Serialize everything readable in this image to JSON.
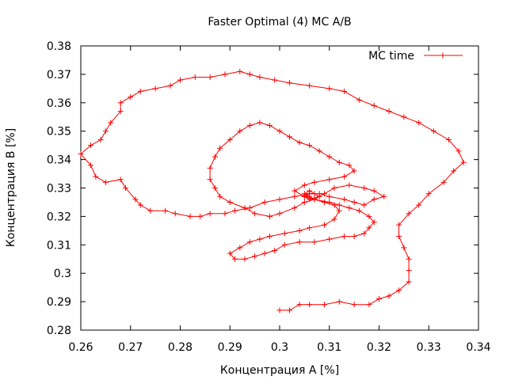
{
  "chart_data": {
    "type": "line",
    "title": "Faster Optimal (4) MC A/B",
    "xlabel": "Концентрация А [%]",
    "ylabel": "Концентрация В [%]",
    "xlim": [
      0.26,
      0.34
    ],
    "ylim": [
      0.28,
      0.38
    ],
    "xticks": [
      "0.26",
      "0.27",
      "0.28",
      "0.29",
      "0.3",
      "0.31",
      "0.32",
      "0.33",
      "0.34"
    ],
    "yticks": [
      "0.28",
      "0.29",
      "0.3",
      "0.31",
      "0.32",
      "0.33",
      "0.34",
      "0.35",
      "0.36",
      "0.37",
      "0.38"
    ],
    "legend_position": "top-right",
    "grid": false,
    "series": [
      {
        "name": "MC time",
        "color": "#ff0000",
        "marker": "plus",
        "points": [
          [
            0.3,
            0.287
          ],
          [
            0.302,
            0.287
          ],
          [
            0.304,
            0.289
          ],
          [
            0.306,
            0.289
          ],
          [
            0.309,
            0.289
          ],
          [
            0.312,
            0.29
          ],
          [
            0.315,
            0.289
          ],
          [
            0.318,
            0.289
          ],
          [
            0.32,
            0.291
          ],
          [
            0.322,
            0.292
          ],
          [
            0.324,
            0.294
          ],
          [
            0.326,
            0.297
          ],
          [
            0.326,
            0.301
          ],
          [
            0.326,
            0.305
          ],
          [
            0.325,
            0.309
          ],
          [
            0.324,
            0.313
          ],
          [
            0.324,
            0.317
          ],
          [
            0.326,
            0.321
          ],
          [
            0.328,
            0.324
          ],
          [
            0.33,
            0.328
          ],
          [
            0.333,
            0.332
          ],
          [
            0.335,
            0.336
          ],
          [
            0.337,
            0.339
          ],
          [
            0.336,
            0.343
          ],
          [
            0.334,
            0.347
          ],
          [
            0.331,
            0.35
          ],
          [
            0.328,
            0.353
          ],
          [
            0.325,
            0.355
          ],
          [
            0.322,
            0.357
          ],
          [
            0.319,
            0.359
          ],
          [
            0.316,
            0.361
          ],
          [
            0.313,
            0.364
          ],
          [
            0.31,
            0.365
          ],
          [
            0.306,
            0.366
          ],
          [
            0.302,
            0.367
          ],
          [
            0.299,
            0.368
          ],
          [
            0.296,
            0.369
          ],
          [
            0.294,
            0.37
          ],
          [
            0.292,
            0.371
          ],
          [
            0.289,
            0.37
          ],
          [
            0.286,
            0.369
          ],
          [
            0.283,
            0.369
          ],
          [
            0.28,
            0.368
          ],
          [
            0.278,
            0.366
          ],
          [
            0.275,
            0.365
          ],
          [
            0.272,
            0.364
          ],
          [
            0.27,
            0.362
          ],
          [
            0.268,
            0.36
          ],
          [
            0.268,
            0.357
          ],
          [
            0.266,
            0.353
          ],
          [
            0.265,
            0.35
          ],
          [
            0.264,
            0.347
          ],
          [
            0.262,
            0.345
          ],
          [
            0.26,
            0.342
          ],
          [
            0.262,
            0.338
          ],
          [
            0.263,
            0.334
          ],
          [
            0.265,
            0.332
          ],
          [
            0.268,
            0.333
          ],
          [
            0.269,
            0.33
          ],
          [
            0.271,
            0.326
          ],
          [
            0.272,
            0.324
          ],
          [
            0.274,
            0.322
          ],
          [
            0.277,
            0.322
          ],
          [
            0.279,
            0.321
          ],
          [
            0.282,
            0.32
          ],
          [
            0.284,
            0.32
          ],
          [
            0.286,
            0.321
          ],
          [
            0.289,
            0.321
          ],
          [
            0.291,
            0.322
          ],
          [
            0.294,
            0.323
          ],
          [
            0.297,
            0.325
          ],
          [
            0.3,
            0.326
          ],
          [
            0.303,
            0.327
          ],
          [
            0.306,
            0.328
          ],
          [
            0.308,
            0.328
          ],
          [
            0.31,
            0.327
          ],
          [
            0.313,
            0.326
          ],
          [
            0.315,
            0.325
          ],
          [
            0.317,
            0.324
          ],
          [
            0.319,
            0.326
          ],
          [
            0.321,
            0.327
          ],
          [
            0.319,
            0.329
          ],
          [
            0.317,
            0.33
          ],
          [
            0.314,
            0.331
          ],
          [
            0.311,
            0.33
          ],
          [
            0.309,
            0.328
          ],
          [
            0.307,
            0.326
          ],
          [
            0.305,
            0.325
          ],
          [
            0.303,
            0.323
          ],
          [
            0.3,
            0.321
          ],
          [
            0.298,
            0.32
          ],
          [
            0.295,
            0.321
          ],
          [
            0.293,
            0.323
          ],
          [
            0.29,
            0.325
          ],
          [
            0.288,
            0.327
          ],
          [
            0.287,
            0.33
          ],
          [
            0.286,
            0.333
          ],
          [
            0.286,
            0.337
          ],
          [
            0.287,
            0.341
          ],
          [
            0.288,
            0.344
          ],
          [
            0.29,
            0.347
          ],
          [
            0.292,
            0.35
          ],
          [
            0.294,
            0.352
          ],
          [
            0.296,
            0.353
          ],
          [
            0.298,
            0.352
          ],
          [
            0.3,
            0.35
          ],
          [
            0.302,
            0.348
          ],
          [
            0.304,
            0.346
          ],
          [
            0.306,
            0.345
          ],
          [
            0.308,
            0.343
          ],
          [
            0.31,
            0.341
          ],
          [
            0.312,
            0.339
          ],
          [
            0.314,
            0.338
          ],
          [
            0.315,
            0.336
          ],
          [
            0.313,
            0.334
          ],
          [
            0.31,
            0.333
          ],
          [
            0.307,
            0.332
          ],
          [
            0.305,
            0.331
          ],
          [
            0.303,
            0.329
          ],
          [
            0.305,
            0.327
          ],
          [
            0.307,
            0.326
          ],
          [
            0.309,
            0.325
          ],
          [
            0.311,
            0.324
          ],
          [
            0.312,
            0.322
          ],
          [
            0.311,
            0.319
          ],
          [
            0.309,
            0.317
          ],
          [
            0.306,
            0.316
          ],
          [
            0.304,
            0.315
          ],
          [
            0.301,
            0.314
          ],
          [
            0.298,
            0.313
          ],
          [
            0.296,
            0.312
          ],
          [
            0.294,
            0.311
          ],
          [
            0.292,
            0.309
          ],
          [
            0.29,
            0.307
          ],
          [
            0.291,
            0.305
          ],
          [
            0.293,
            0.305
          ],
          [
            0.295,
            0.306
          ],
          [
            0.297,
            0.307
          ],
          [
            0.299,
            0.308
          ],
          [
            0.301,
            0.31
          ],
          [
            0.304,
            0.311
          ],
          [
            0.307,
            0.311
          ],
          [
            0.31,
            0.312
          ],
          [
            0.313,
            0.313
          ],
          [
            0.315,
            0.313
          ],
          [
            0.317,
            0.314
          ],
          [
            0.318,
            0.316
          ],
          [
            0.319,
            0.318
          ],
          [
            0.318,
            0.32
          ],
          [
            0.316,
            0.322
          ],
          [
            0.314,
            0.323
          ],
          [
            0.312,
            0.324
          ],
          [
            0.31,
            0.325
          ],
          [
            0.307,
            0.326
          ],
          [
            0.306,
            0.327
          ],
          [
            0.305,
            0.328
          ],
          [
            0.306,
            0.329
          ],
          [
            0.307,
            0.328
          ],
          [
            0.308,
            0.327
          ],
          [
            0.306,
            0.326
          ],
          [
            0.305,
            0.327
          ],
          [
            0.306,
            0.328
          ]
        ]
      }
    ]
  }
}
